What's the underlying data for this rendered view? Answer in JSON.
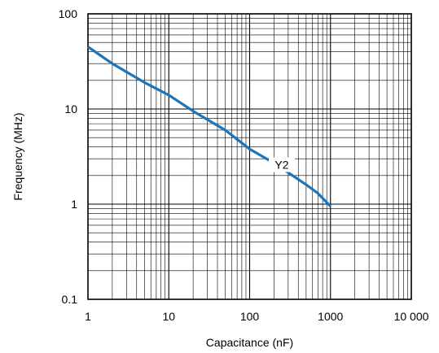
{
  "chart_data": {
    "type": "line",
    "xlabel": "Capacitance (nF)",
    "ylabel": "Frequency (MHz)",
    "x_scale": "log",
    "y_scale": "log",
    "xlim": [
      1,
      10000
    ],
    "ylim": [
      0.1,
      100
    ],
    "x_ticks": [
      1,
      10,
      100,
      1000,
      10000
    ],
    "x_tick_labels": [
      "1",
      "10",
      "100",
      "1000",
      "10 000"
    ],
    "y_ticks": [
      0.1,
      1,
      10,
      100
    ],
    "y_tick_labels": [
      "0.1",
      "1",
      "10",
      "100"
    ],
    "grid": true,
    "line_color": "#1b75bc",
    "series": [
      {
        "name": "Y2",
        "x": [
          1,
          2,
          5,
          10,
          20,
          50,
          100,
          200,
          500,
          700,
          1000
        ],
        "y": [
          45,
          30,
          19,
          14,
          9.5,
          6,
          3.8,
          2.7,
          1.6,
          1.3,
          0.95
        ]
      }
    ]
  }
}
